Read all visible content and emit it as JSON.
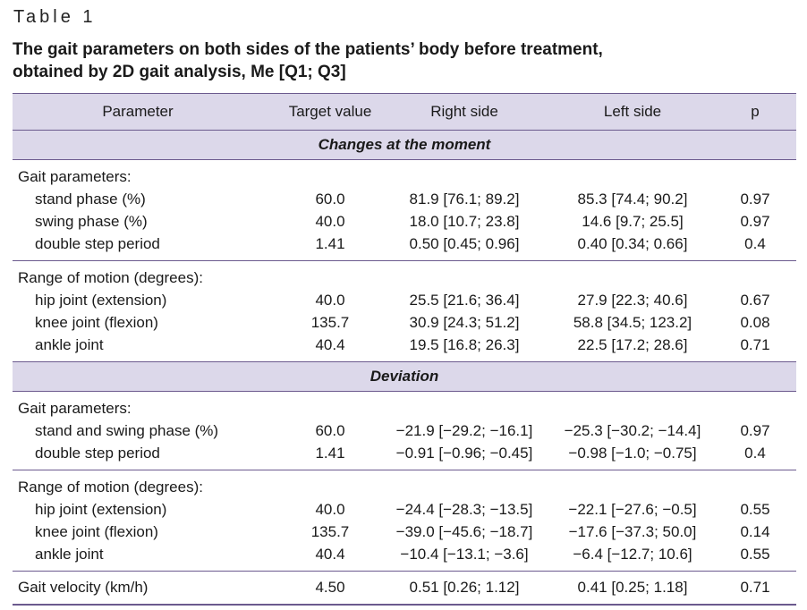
{
  "table_label": "Table 1",
  "caption_line1": "The gait parameters on both sides of the patients’ body before treatment,",
  "caption_line2": "obtained by 2D gait analysis, Me [Q1; Q3]",
  "columns": [
    "Parameter",
    "Target value",
    "Right side",
    "Left side",
    "p"
  ],
  "sections": [
    {
      "title": "Changes at the moment",
      "groups": [
        {
          "heading": "Gait parameters:",
          "rows": [
            {
              "label": "stand phase (%)",
              "target": "60.0",
              "right": "81.9 [76.1; 89.2]",
              "left": "85.3 [74.4; 90.2]",
              "p": "0.97"
            },
            {
              "label": "swing phase (%)",
              "target": "40.0",
              "right": "18.0 [10.7; 23.8]",
              "left": "14.6 [9.7; 25.5]",
              "p": "0.97"
            },
            {
              "label": "double step period",
              "target": "1.41",
              "right": "0.50 [0.45; 0.96]",
              "left": "0.40 [0.34; 0.66]",
              "p": "0.4"
            }
          ]
        },
        {
          "heading": "Range of motion (degrees):",
          "rows": [
            {
              "label": "hip joint (extension)",
              "target": "40.0",
              "right": "25.5 [21.6; 36.4]",
              "left": "27.9 [22.3; 40.6]",
              "p": "0.67"
            },
            {
              "label": "knee joint (flexion)",
              "target": "135.7",
              "right": "30.9 [24.3; 51.2]",
              "left": "58.8 [34.5; 123.2]",
              "p": "0.08"
            },
            {
              "label": "ankle joint",
              "target": "40.4",
              "right": "19.5 [16.8; 26.3]",
              "left": "22.5 [17.2; 28.6]",
              "p": "0.71"
            }
          ]
        }
      ]
    },
    {
      "title": "Deviation",
      "groups": [
        {
          "heading": "Gait parameters:",
          "rows": [
            {
              "label": "stand and swing phase (%)",
              "target": "60.0",
              "right": "−21.9 [−29.2; −16.1]",
              "left": "−25.3 [−30.2; −14.4]",
              "p": "0.97"
            },
            {
              "label": "double step period",
              "target": "1.41",
              "right": "−0.91 [−0.96; −0.45]",
              "left": "−0.98 [−1.0; −0.75]",
              "p": "0.4"
            }
          ]
        },
        {
          "heading": "Range of motion (degrees):",
          "rows": [
            {
              "label": "hip joint (extension)",
              "target": "40.0",
              "right": "−24.4 [−28.3; −13.5]",
              "left": "−22.1 [−27.6; −0.5]",
              "p": "0.55"
            },
            {
              "label": "knee joint (flexion)",
              "target": "135.7",
              "right": "−39.0 [−45.6; −18.7]",
              "left": "−17.6 [−37.3; 50.0]",
              "p": "0.14"
            },
            {
              "label": "ankle joint",
              "target": "40.4",
              "right": "−10.4 [−13.1; −3.6]",
              "left": "−6.4 [−12.7; 10.6]",
              "p": "0.55"
            }
          ]
        }
      ]
    }
  ],
  "final_row": {
    "label": "Gait velocity (km/h)",
    "target": "4.50",
    "right": "0.51 [0.26; 1.12]",
    "left": "0.41 [0.25; 1.18]",
    "p": "0.71"
  }
}
